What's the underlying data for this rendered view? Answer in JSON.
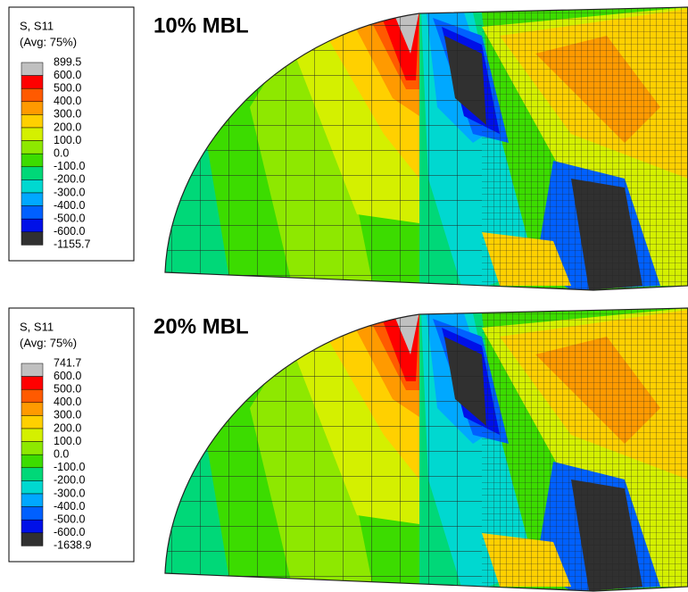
{
  "panels": [
    {
      "label": "10% MBL",
      "legend": {
        "title": "S, S11",
        "avg": "(Avg: 75%)",
        "levels": [
          "899.5",
          "600.0",
          "500.0",
          "400.0",
          "300.0",
          "200.0",
          "100.0",
          "0.0",
          "-100.0",
          "-200.0",
          "-300.0",
          "-400.0",
          "-500.0",
          "-600.0",
          "-1155.7"
        ],
        "colors": [
          "#c0c0c0",
          "#ff0000",
          "#ff5a00",
          "#ff9a00",
          "#ffd000",
          "#d4f000",
          "#8ee800",
          "#3cdc00",
          "#00d878",
          "#00d8d0",
          "#00a8ff",
          "#0060ff",
          "#0010e8",
          "#303030"
        ]
      }
    },
    {
      "label": "20% MBL",
      "legend": {
        "title": "S, S11",
        "avg": "(Avg: 75%)",
        "levels": [
          "741.7",
          "600.0",
          "500.0",
          "400.0",
          "300.0",
          "200.0",
          "100.0",
          "0.0",
          "-100.0",
          "-200.0",
          "-300.0",
          "-400.0",
          "-500.0",
          "-600.0",
          "-1638.9"
        ],
        "colors": [
          "#c0c0c0",
          "#ff0000",
          "#ff5a00",
          "#ff9a00",
          "#ffd000",
          "#d4f000",
          "#8ee800",
          "#3cdc00",
          "#00d878",
          "#00d8d0",
          "#00a8ff",
          "#0060ff",
          "#0010e8",
          "#303030"
        ]
      }
    }
  ]
}
